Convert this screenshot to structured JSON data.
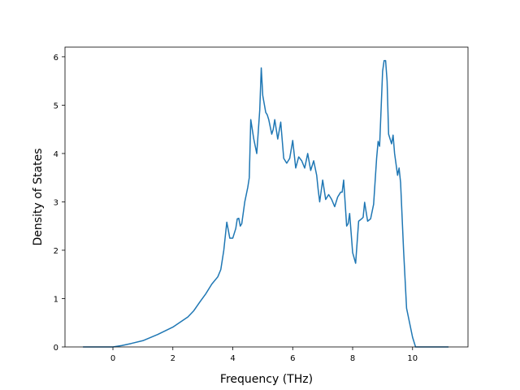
{
  "chart_data": {
    "type": "line",
    "title": "",
    "xlabel": "Frequency (THz)",
    "ylabel": "Density of States",
    "xlim": [
      -1.6,
      11.85
    ],
    "ylim": [
      0,
      6.2
    ],
    "xticks": [
      0,
      2,
      4,
      6,
      8,
      10
    ],
    "yticks": [
      0,
      1,
      2,
      3,
      4,
      5,
      6
    ],
    "grid": false,
    "line_color": "#1f77b4",
    "series": [
      {
        "x": [
          -1.0,
          -0.5,
          0.0,
          0.3,
          0.6,
          1.0,
          1.5,
          2.0,
          2.5,
          2.7,
          2.9,
          3.1,
          3.3,
          3.5,
          3.6,
          3.7,
          3.8,
          3.9,
          4.0,
          4.1,
          4.15,
          4.2,
          4.25,
          4.3,
          4.4,
          4.5,
          4.55,
          4.6,
          4.7,
          4.8,
          4.9,
          4.95,
          5.0,
          5.1,
          5.15,
          5.2,
          5.3,
          5.35,
          5.4,
          5.5,
          5.6,
          5.7,
          5.8,
          5.9,
          6.0,
          6.1,
          6.2,
          6.3,
          6.4,
          6.5,
          6.6,
          6.7,
          6.8,
          6.85,
          6.9,
          7.0,
          7.1,
          7.2,
          7.3,
          7.4,
          7.5,
          7.6,
          7.65,
          7.7,
          7.8,
          7.85,
          7.9,
          8.0,
          8.1,
          8.2,
          8.3,
          8.35,
          8.4,
          8.5,
          8.6,
          8.7,
          8.8,
          8.85,
          8.9,
          9.0,
          9.05,
          9.1,
          9.15,
          9.2,
          9.3,
          9.35,
          9.4,
          9.5,
          9.55,
          9.6,
          9.7,
          9.8,
          9.9,
          10.0,
          10.1,
          10.2,
          10.5,
          11.0,
          11.2
        ],
        "y": [
          0.0,
          0.0,
          0.0,
          0.03,
          0.07,
          0.13,
          0.26,
          0.41,
          0.62,
          0.75,
          0.93,
          1.1,
          1.3,
          1.45,
          1.6,
          2.0,
          2.58,
          2.25,
          2.25,
          2.45,
          2.65,
          2.66,
          2.5,
          2.55,
          3.0,
          3.3,
          3.5,
          4.7,
          4.3,
          4.0,
          4.9,
          5.77,
          5.2,
          4.85,
          4.8,
          4.7,
          4.4,
          4.5,
          4.7,
          4.3,
          4.65,
          3.9,
          3.8,
          3.9,
          4.27,
          3.7,
          3.93,
          3.85,
          3.7,
          4.0,
          3.65,
          3.85,
          3.55,
          3.25,
          3.0,
          3.45,
          3.05,
          3.15,
          3.05,
          2.9,
          3.1,
          3.2,
          3.2,
          3.45,
          2.5,
          2.55,
          2.76,
          1.95,
          1.73,
          2.6,
          2.65,
          2.68,
          2.99,
          2.6,
          2.65,
          2.95,
          3.9,
          4.25,
          4.15,
          5.7,
          5.92,
          5.92,
          5.5,
          4.4,
          4.2,
          4.38,
          4.0,
          3.55,
          3.7,
          3.4,
          2.0,
          0.8,
          0.5,
          0.2,
          0.0,
          0.0,
          0.0,
          0.0,
          0.0
        ]
      }
    ]
  }
}
